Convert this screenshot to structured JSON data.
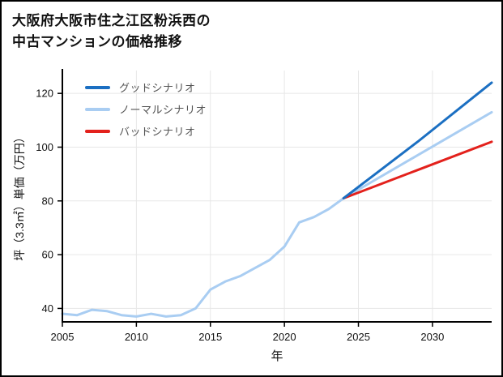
{
  "title": {
    "line1": "大阪府大阪市住之江区粉浜西の",
    "line2": "中古マンションの価格推移"
  },
  "chart_data": {
    "type": "line",
    "title": "大阪府大阪市住之江区粉浜西の中古マンションの価格推移",
    "xlabel": "年",
    "ylabel": "坪（3.3㎡）単価（万円）",
    "xlim": [
      2005,
      2034
    ],
    "ylim": [
      35,
      128.5
    ],
    "x_ticks": [
      2005,
      2010,
      2015,
      2020,
      2025,
      2030
    ],
    "y_ticks": [
      40,
      60,
      80,
      100,
      120
    ],
    "grid": true,
    "grid_color": "#e7e7e7",
    "axis_color": "#000000",
    "tick_label_color": "#111111",
    "legend_position": "top-left",
    "series": [
      {
        "name": "グッドシナリオ",
        "color": "#1b6fc2",
        "x": [
          2024,
          2029,
          2034
        ],
        "values": [
          81,
          102,
          124
        ]
      },
      {
        "name": "ノーマルシナリオ",
        "color": "#a9cdf2",
        "x": [
          2005,
          2006,
          2007,
          2008,
          2009,
          2010,
          2011,
          2012,
          2013,
          2014,
          2015,
          2016,
          2017,
          2018,
          2019,
          2020,
          2021,
          2022,
          2023,
          2024,
          2029,
          2034
        ],
        "values": [
          38,
          37.5,
          39.5,
          39,
          37.5,
          37,
          38,
          37,
          37.5,
          40,
          47,
          50,
          52,
          55,
          58,
          63,
          72,
          74,
          77,
          81,
          97,
          113
        ]
      },
      {
        "name": "バッドシナリオ",
        "color": "#e3211c",
        "x": [
          2024,
          2029,
          2034
        ],
        "values": [
          81,
          91.5,
          102
        ]
      }
    ]
  }
}
